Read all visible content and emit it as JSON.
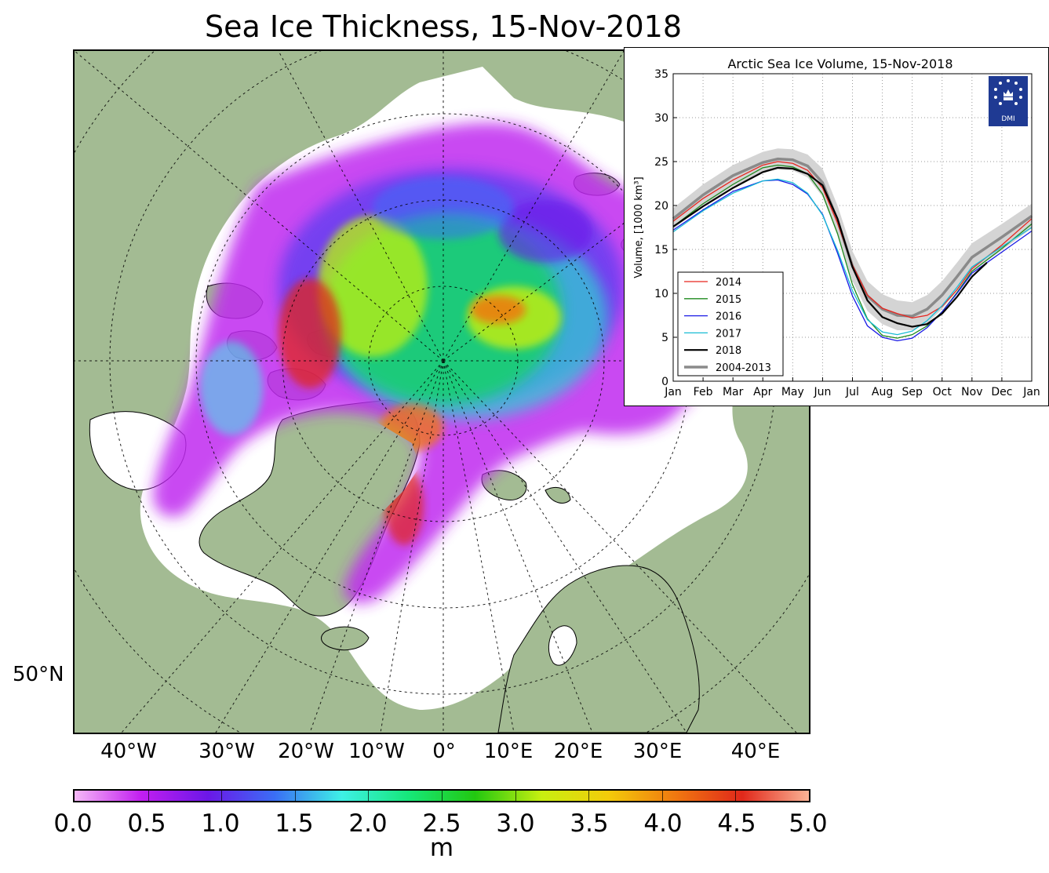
{
  "title": "Sea Ice Thickness, 15-Nov-2018",
  "map": {
    "lat_label": "50°N",
    "lon_labels": [
      "40°W",
      "30°W",
      "20°W",
      "10°W",
      "0°",
      "10°E",
      "20°E",
      "30°E",
      "40°E"
    ],
    "colors": {
      "land": "#a3bb93",
      "ocean": "#ffffff",
      "coast": "#000000"
    }
  },
  "colorbar": {
    "ticks": [
      "0.0",
      "0.5",
      "1.0",
      "1.5",
      "2.0",
      "2.5",
      "3.0",
      "3.5",
      "4.0",
      "4.5",
      "5.0"
    ],
    "unit": "m",
    "min": 0.0,
    "max": 5.0,
    "colors": [
      "#f5b8f7",
      "#c21ef0",
      "#6b17e8",
      "#3a6ef5",
      "#3ef0e6",
      "#16e87a",
      "#22c810",
      "#c8ef10",
      "#f4cb0a",
      "#f07810",
      "#e0281a",
      "#fbb395"
    ]
  },
  "chart_data": {
    "type": "line",
    "title": "Arctic Sea Ice Volume, 15-Nov-2018",
    "ylabel": "Volume, [1000 km³]",
    "xlabel": "",
    "months": [
      "Jan",
      "Feb",
      "Mar",
      "Apr",
      "May",
      "Jun",
      "Jul",
      "Aug",
      "Sep",
      "Oct",
      "Nov",
      "Dec",
      "Jan"
    ],
    "yticks": [
      "0",
      "5",
      "10",
      "15",
      "20",
      "25",
      "30",
      "35"
    ],
    "ylim": [
      0,
      35
    ],
    "xlim": [
      0,
      12
    ],
    "grid": true,
    "legend_position": "lower-left",
    "logo_text": "DMI",
    "series": [
      {
        "name": "2014",
        "color": "#e8241e",
        "x": [
          0,
          1,
          2,
          3,
          3.5,
          4,
          4.5,
          5,
          5.5,
          6,
          6.5,
          7,
          7.5,
          8,
          8.5,
          9,
          9.5,
          10,
          11,
          12
        ],
        "y": [
          18.2,
          20.8,
          22.9,
          24.6,
          25.0,
          24.8,
          24.0,
          22.0,
          18.0,
          13.2,
          9.8,
          8.3,
          7.7,
          7.2,
          7.5,
          8.5,
          10.4,
          12.8,
          15.5,
          18.5
        ]
      },
      {
        "name": "2015",
        "color": "#1e8a1e",
        "x": [
          0,
          1,
          2,
          3,
          3.5,
          4,
          4.5,
          5,
          5.5,
          6,
          6.5,
          7,
          7.5,
          8,
          8.5,
          9,
          9.5,
          10,
          11,
          12
        ],
        "y": [
          17.6,
          20.2,
          22.4,
          24.3,
          24.6,
          24.4,
          23.6,
          21.3,
          16.8,
          11.0,
          7.1,
          5.2,
          4.9,
          5.3,
          6.3,
          7.9,
          10.1,
          12.5,
          15.1,
          17.9
        ]
      },
      {
        "name": "2016",
        "color": "#1a1ae6",
        "x": [
          0,
          1,
          2,
          3,
          3.5,
          4,
          4.5,
          5,
          5.5,
          6,
          6.5,
          7,
          7.5,
          8,
          8.5,
          9,
          9.5,
          10,
          11,
          12
        ],
        "y": [
          17.2,
          19.5,
          21.6,
          22.8,
          22.9,
          22.4,
          21.3,
          19.0,
          14.6,
          9.7,
          6.3,
          5.0,
          4.6,
          4.9,
          6.1,
          7.9,
          10.0,
          12.3,
          14.7,
          17.1
        ]
      },
      {
        "name": "2017",
        "color": "#18bcd4",
        "x": [
          0,
          1,
          2,
          3,
          3.5,
          4,
          4.5,
          5,
          5.5,
          6,
          6.5,
          7,
          7.5,
          8,
          8.5,
          9,
          9.5,
          10,
          11,
          12
        ],
        "y": [
          17.0,
          19.4,
          21.4,
          22.8,
          23.0,
          22.6,
          21.4,
          18.9,
          14.9,
          10.3,
          7.0,
          5.6,
          5.3,
          5.7,
          6.9,
          8.6,
          10.7,
          13.0,
          15.3,
          17.5
        ]
      },
      {
        "name": "2018",
        "color": "#000000",
        "x": [
          0,
          1,
          2,
          3,
          3.5,
          4,
          4.5,
          5,
          5.5,
          6,
          6.5,
          7,
          7.5,
          8,
          8.5,
          9,
          9.5,
          10,
          10.5
        ],
        "y": [
          17.6,
          19.9,
          22.0,
          23.8,
          24.3,
          24.2,
          23.6,
          22.3,
          18.5,
          13.0,
          9.2,
          7.3,
          6.6,
          6.2,
          6.5,
          7.7,
          9.6,
          11.9,
          13.5
        ]
      },
      {
        "name": "2004-2013",
        "color": "#8a8a8a",
        "x": [
          0,
          1,
          2,
          3,
          3.5,
          4,
          4.5,
          5,
          5.5,
          6,
          6.5,
          7,
          7.5,
          8,
          8.5,
          9,
          9.5,
          10,
          11,
          12
        ],
        "y": [
          18.5,
          21.2,
          23.4,
          24.9,
          25.3,
          25.2,
          24.5,
          22.6,
          18.3,
          13.1,
          9.7,
          8.2,
          7.5,
          7.4,
          8.2,
          9.8,
          11.9,
          14.1,
          16.4,
          18.8
        ]
      }
    ],
    "band": {
      "x": [
        0,
        1,
        2,
        3,
        3.5,
        4,
        4.5,
        5,
        5.5,
        6,
        6.5,
        7,
        7.5,
        8,
        8.5,
        9,
        9.5,
        10,
        11,
        12
      ],
      "lo": [
        17.3,
        20.0,
        22.2,
        23.7,
        24.1,
        24.0,
        23.2,
        21.0,
        16.6,
        11.4,
        8.0,
        6.5,
        5.8,
        5.8,
        6.6,
        8.2,
        10.3,
        12.5,
        14.9,
        17.4
      ],
      "hi": [
        19.7,
        22.4,
        24.6,
        26.1,
        26.5,
        26.4,
        25.8,
        24.2,
        20.0,
        14.8,
        11.4,
        9.9,
        9.2,
        9.0,
        9.8,
        11.4,
        13.5,
        15.7,
        17.9,
        20.2
      ],
      "color": "#d4d4d4"
    }
  }
}
